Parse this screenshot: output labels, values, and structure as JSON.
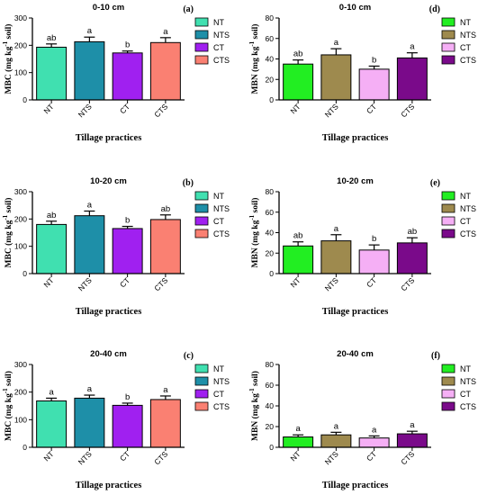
{
  "categories": [
    "NT",
    "NTS",
    "CT",
    "CTS"
  ],
  "legend": [
    "NT",
    "NTS",
    "CT",
    "CTS"
  ],
  "xlabel": "Tillage practices",
  "chart_data": [
    {
      "type": "bar",
      "panel": "(a)",
      "depth": "0-10 cm",
      "ylabel": "MBC (mg kg",
      "categories": [
        "NT",
        "NTS",
        "CT",
        "CTS"
      ],
      "values": [
        193,
        213,
        172,
        210
      ],
      "errors": [
        12,
        17,
        7,
        18
      ],
      "letters": [
        "ab",
        "a",
        "b",
        "a"
      ],
      "ylim": [
        0,
        300
      ],
      "yticks": [
        "0",
        "100",
        "200",
        "300"
      ],
      "colors": [
        "#40E0B0",
        "#1E8FA8",
        "#A020F0",
        "#FA8072"
      ]
    },
    {
      "type": "bar",
      "panel": "(d)",
      "depth": "0-10 cm",
      "ylabel": "MBN (mg kg",
      "categories": [
        "NT",
        "NTS",
        "CT",
        "CTS"
      ],
      "values": [
        35,
        44,
        30,
        41
      ],
      "errors": [
        4,
        6,
        3,
        5
      ],
      "letters": [
        "ab",
        "a",
        "b",
        "a"
      ],
      "ylim": [
        0,
        80
      ],
      "yticks": [
        "0",
        "20",
        "40",
        "60",
        "80"
      ],
      "colors": [
        "#22EE22",
        "#9E8A4E",
        "#F5AFF5",
        "#7A0A8A"
      ]
    },
    {
      "type": "bar",
      "panel": "(b)",
      "depth": "10-20 cm",
      "ylabel": "MBC (mg kg",
      "categories": [
        "NT",
        "NTS",
        "CT",
        "CTS"
      ],
      "values": [
        180,
        212,
        165,
        198
      ],
      "errors": [
        12,
        17,
        8,
        17
      ],
      "letters": [
        "ab",
        "a",
        "b",
        "ab"
      ],
      "ylim": [
        0,
        300
      ],
      "yticks": [
        "0",
        "100",
        "200",
        "300"
      ],
      "colors": [
        "#40E0B0",
        "#1E8FA8",
        "#A020F0",
        "#FA8072"
      ]
    },
    {
      "type": "bar",
      "panel": "(e)",
      "depth": "10-20 cm",
      "ylabel": "MBN (mg kg",
      "categories": [
        "NT",
        "NTS",
        "CT",
        "CTS"
      ],
      "values": [
        27,
        32,
        23,
        30
      ],
      "errors": [
        4,
        6,
        5,
        5
      ],
      "letters": [
        "ab",
        "a",
        "b",
        "ab"
      ],
      "ylim": [
        0,
        80
      ],
      "yticks": [
        "0",
        "20",
        "40",
        "60",
        "80"
      ],
      "colors": [
        "#22EE22",
        "#9E8A4E",
        "#F5AFF5",
        "#7A0A8A"
      ]
    },
    {
      "type": "bar",
      "panel": "(c)",
      "depth": "20-40 cm",
      "ylabel": "MBC (mg kg",
      "categories": [
        "NT",
        "NTS",
        "CT",
        "CTS"
      ],
      "values": [
        168,
        178,
        152,
        173
      ],
      "errors": [
        10,
        11,
        8,
        13
      ],
      "letters": [
        "a",
        "a",
        "b",
        "a"
      ],
      "ylim": [
        0,
        300
      ],
      "yticks": [
        "0",
        "100",
        "200",
        "300"
      ],
      "colors": [
        "#40E0B0",
        "#1E8FA8",
        "#A020F0",
        "#FA8072"
      ]
    },
    {
      "type": "bar",
      "panel": "(f)",
      "depth": "20-40 cm",
      "ylabel": "MBN (mg kg",
      "categories": [
        "NT",
        "NTS",
        "CT",
        "CTS"
      ],
      "values": [
        10,
        12,
        9,
        13
      ],
      "errors": [
        2,
        2.5,
        2,
        2.5
      ],
      "letters": [
        "a",
        "a",
        "a",
        "a"
      ],
      "ylim": [
        0,
        80
      ],
      "yticks": [
        "0",
        "20",
        "40",
        "60",
        "80"
      ],
      "colors": [
        "#22EE22",
        "#9E8A4E",
        "#F5AFF5",
        "#7A0A8A"
      ]
    }
  ]
}
